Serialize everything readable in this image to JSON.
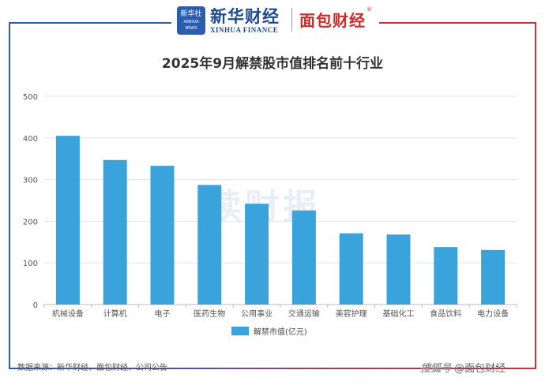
{
  "header": {
    "xinhua_logo_text": "新华社",
    "xinhua_logo_sub": "XINHUA NEWS",
    "xinhua_brand": "新华财经",
    "xinhua_brand_en": "XINHUA FINANCE",
    "mianbao_brand": "面包财经",
    "mianbao_mark": "®"
  },
  "chart_data": {
    "type": "bar",
    "title": "2025年9月解禁股市值排名前十行业",
    "categories": [
      "机械设备",
      "计算机",
      "电子",
      "医药生物",
      "公用事业",
      "交通运输",
      "美容护理",
      "基础化工",
      "食品饮料",
      "电力设备"
    ],
    "series": [
      {
        "name": "解禁市值(亿元)",
        "values": [
          405,
          347,
          333,
          287,
          242,
          226,
          171,
          168,
          138,
          131
        ],
        "color": "#3aa3dc"
      }
    ],
    "ylim": [
      0,
      500
    ],
    "yticks": [
      "0",
      "100",
      "200",
      "300",
      "400",
      "500"
    ],
    "grid": true,
    "legend": "bottom"
  },
  "watermark": "读财报",
  "source": "数据来源：新华财经、面包财经、公司公告",
  "credit": {
    "prefix": "搜狐号",
    "handle": "@面包财经"
  }
}
